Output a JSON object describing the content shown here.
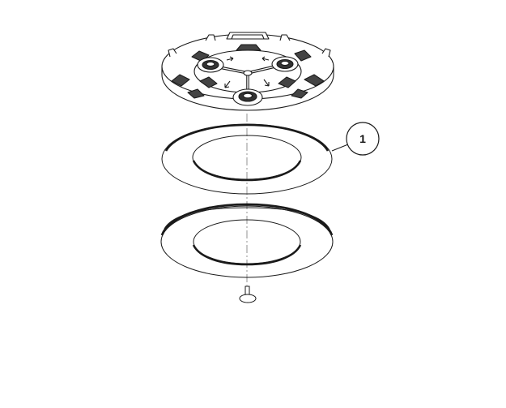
{
  "diagram": {
    "callouts": [
      {
        "label": "1"
      }
    ],
    "colors": {
      "line": "#1a1a1a",
      "background": "#ffffff"
    }
  }
}
